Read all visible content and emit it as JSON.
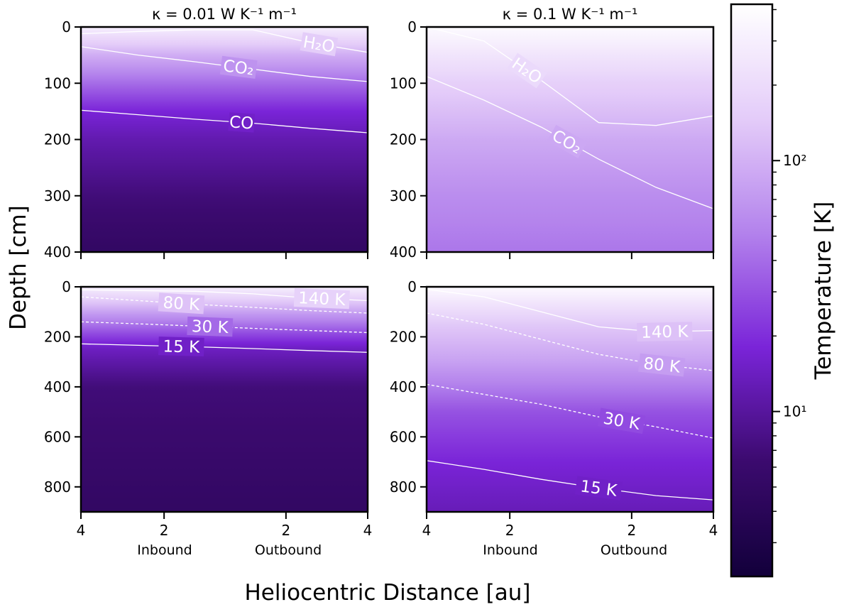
{
  "figure": {
    "shared_ylabel": "Depth [cm]",
    "shared_xlabel": "Heliocentric Distance [au]",
    "column_titles": [
      "κ = 0.01 W K⁻¹ m⁻¹",
      "κ = 0.1 W K⁻¹ m⁻¹"
    ],
    "orbit_labels": [
      "Inbound",
      "Outbound"
    ]
  },
  "colorbar": {
    "label": "Temperature [K]",
    "scale": "log",
    "range": [
      2.2,
      420
    ],
    "major_ticks": [
      {
        "value": 10,
        "label": "10¹"
      },
      {
        "value": 100,
        "label": "10²"
      }
    ],
    "minor_ticks": [
      3,
      4,
      5,
      6,
      7,
      8,
      9,
      20,
      30,
      40,
      50,
      60,
      70,
      80,
      90,
      200,
      300,
      400
    ],
    "colors": [
      "#12003a",
      "#3b0a6e",
      "#7a24d8",
      "#b382ec",
      "#e4ccf9",
      "#ffffff"
    ]
  },
  "chart_data": [
    {
      "type": "heatmap",
      "panel": "top-left",
      "title": "κ = 0.01 W K⁻¹ m⁻¹",
      "x_ticks": [
        "4",
        "2",
        "2",
        "4"
      ],
      "y_ticks": [
        "0",
        "100",
        "200",
        "300",
        "400"
      ],
      "ylim": [
        0,
        400
      ],
      "temperature_profile": [
        [
          0,
          300
        ],
        [
          50,
          95
        ],
        [
          100,
          40
        ],
        [
          150,
          18
        ],
        [
          200,
          12
        ],
        [
          300,
          7
        ],
        [
          400,
          5
        ]
      ],
      "contours": [
        {
          "label": "H₂O",
          "style": "solid",
          "depth": [
            12,
            8,
            5,
            5,
            28,
            45
          ]
        },
        {
          "label": "CO₂",
          "style": "solid",
          "depth": [
            35,
            50,
            62,
            75,
            88,
            97
          ]
        },
        {
          "label": "CO",
          "style": "solid",
          "depth": [
            148,
            156,
            164,
            171,
            180,
            188
          ]
        }
      ]
    },
    {
      "type": "heatmap",
      "panel": "top-right",
      "title": "κ = 0.1 W K⁻¹ m⁻¹",
      "x_ticks": [
        "4",
        "2",
        "2",
        "4"
      ],
      "y_ticks": [
        "0",
        "100",
        "200",
        "300",
        "400"
      ],
      "ylim": [
        0,
        400
      ],
      "temperature_profile": [
        [
          0,
          380
        ],
        [
          100,
          160
        ],
        [
          200,
          90
        ],
        [
          300,
          60
        ],
        [
          400,
          45
        ]
      ],
      "contours": [
        {
          "label": "H₂O",
          "style": "solid",
          "depth": [
            0,
            25,
            95,
            170,
            175,
            158
          ]
        },
        {
          "label": "CO₂",
          "style": "solid",
          "depth": [
            88,
            130,
            178,
            235,
            285,
            323
          ]
        }
      ]
    },
    {
      "type": "heatmap",
      "panel": "bottom-left",
      "y_ticks": [
        "0",
        "200",
        "400",
        "600",
        "800"
      ],
      "ylim": [
        0,
        900
      ],
      "temperature_profile": [
        [
          0,
          300
        ],
        [
          60,
          140
        ],
        [
          100,
          80
        ],
        [
          180,
          30
        ],
        [
          240,
          15
        ],
        [
          400,
          7
        ],
        [
          900,
          5
        ]
      ],
      "contours": [
        {
          "label": "140 K",
          "style": "solid",
          "depth": [
            12,
            15,
            18,
            28,
            45,
            55
          ]
        },
        {
          "label": "80 K",
          "style": "dashed",
          "depth": [
            40,
            55,
            70,
            82,
            95,
            105
          ]
        },
        {
          "label": "30 K",
          "style": "dashed",
          "depth": [
            140,
            148,
            157,
            166,
            175,
            183
          ]
        },
        {
          "label": "15 K",
          "style": "solid",
          "depth": [
            228,
            234,
            240,
            247,
            255,
            262
          ]
        }
      ]
    },
    {
      "type": "heatmap",
      "panel": "bottom-right",
      "y_ticks": [
        "0",
        "200",
        "400",
        "600",
        "800"
      ],
      "ylim": [
        0,
        900
      ],
      "temperature_profile": [
        [
          0,
          380
        ],
        [
          150,
          140
        ],
        [
          300,
          80
        ],
        [
          500,
          30
        ],
        [
          700,
          18
        ],
        [
          900,
          13
        ]
      ],
      "contours": [
        {
          "label": "140 K",
          "style": "solid",
          "depth": [
            10,
            40,
            100,
            160,
            180,
            175
          ]
        },
        {
          "label": "80 K",
          "style": "dashed",
          "depth": [
            105,
            150,
            210,
            270,
            310,
            335
          ]
        },
        {
          "label": "30 K",
          "style": "dashed",
          "depth": [
            390,
            430,
            470,
            520,
            560,
            605
          ]
        },
        {
          "label": "15 K",
          "style": "solid",
          "depth": [
            695,
            730,
            770,
            805,
            835,
            852
          ]
        }
      ]
    }
  ]
}
